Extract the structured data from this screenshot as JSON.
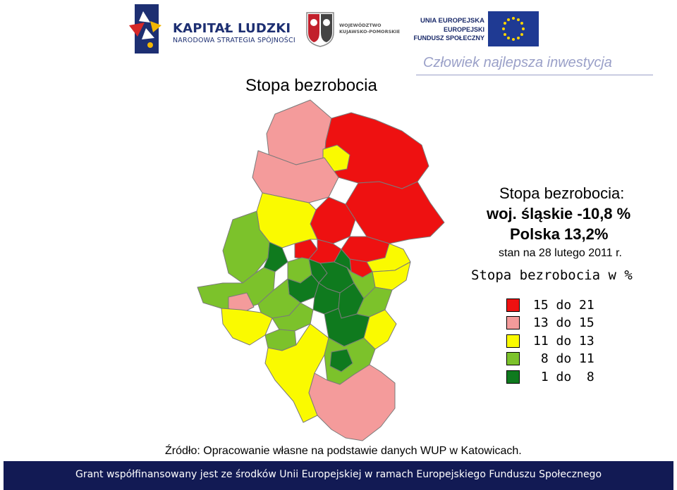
{
  "header": {
    "logo_kapital": {
      "title": "KAPITAŁ LUDZKI",
      "subtitle": "NARODOWA STRATEGIA SPÓJNOŚCI"
    },
    "logo_region": {
      "line1": "WOJEWÓDZTWO",
      "line2": "KUJAWSKO-POMORSKIE"
    },
    "logo_eu": {
      "line1": "UNIA EUROPEJSKA",
      "line2": "EUROPEJSKI",
      "line3": "FUNDUSZ SPOŁECZNY"
    },
    "slogan": "Człowiek najlepsza inwestycja"
  },
  "page_title": "Stopa bezrobocia",
  "stats": {
    "heading": "Stopa bezrobocia:",
    "region_line": "woj. śląskie -10,8 %",
    "poland_line": "Polska  13,2%",
    "date_line": "stan na 28 lutego 2011 r."
  },
  "legend": {
    "title": "Stopa bezrobocia w %",
    "items": [
      {
        "label": "15 do 21",
        "color": "#ee1111"
      },
      {
        "label": "13 do 15",
        "color": "#f49b9b"
      },
      {
        "label": "11 do 13",
        "color": "#fafa00"
      },
      {
        "label": " 8 do 11",
        "color": "#7cc22b"
      },
      {
        "label": " 1 do  8",
        "color": "#0f7a1e"
      }
    ]
  },
  "map": {
    "colors": {
      "red": "#ee1111",
      "pink": "#f49b9b",
      "yellow": "#fafa00",
      "light_green": "#7cc22b",
      "dark_green": "#0f7a1e",
      "border": "#7a7a7a"
    }
  },
  "source": "Źródło: Opracowanie własne na podstawie danych  WUP  w Katowicach.",
  "footer": {
    "text": "Grant współfinansowany jest ze środków Unii Europejskiej w ramach Europejskiego Funduszu Społecznego",
    "background": "#121a54"
  }
}
